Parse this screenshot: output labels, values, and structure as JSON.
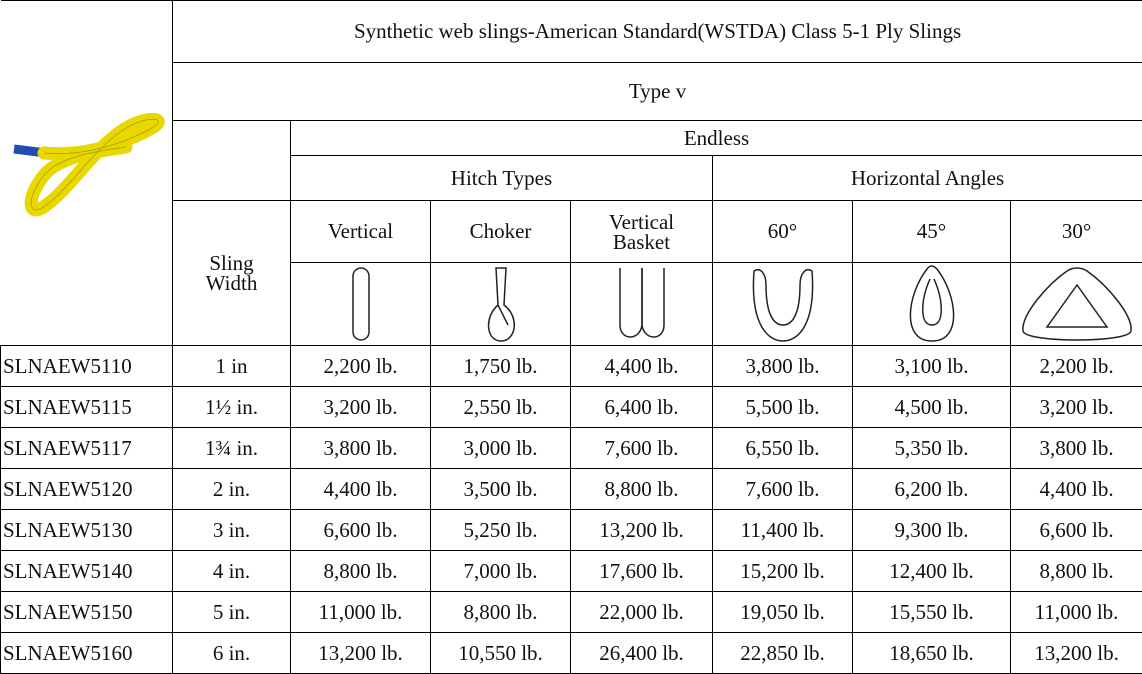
{
  "table": {
    "title": "Synthetic web slings-American Standard(WSTDA) Class 5-1 Ply Slings",
    "type": "Type v",
    "endless": "Endless",
    "hitch_types": "Hitch Types",
    "horizontal_angles": "Horizontal Angles",
    "sling_width": "Sling Width",
    "columns": [
      "Vertical",
      "Choker",
      "Vertical Basket",
      "60°",
      "45°",
      "30°"
    ],
    "rows": [
      [
        "SLNAEW5110",
        "1 in",
        "2,200 lb.",
        "1,750 lb.",
        "4,400 lb.",
        "3,800 lb.",
        "3,100 lb.",
        "2,200 lb."
      ],
      [
        "SLNAEW5115",
        "1½ in.",
        "3,200 lb.",
        "2,550 lb.",
        "6,400 lb.",
        "5,500 lb.",
        "4,500 lb.",
        "3,200 lb."
      ],
      [
        "SLNAEW5117",
        "1¾ in.",
        "3,800 lb.",
        "3,000 lb.",
        "7,600 lb.",
        "6,550 lb.",
        "5,350 lb.",
        "3,800 lb."
      ],
      [
        "SLNAEW5120",
        "2 in.",
        "4,400 lb.",
        "3,500 lb.",
        "8,800 lb.",
        "7,600 lb.",
        "6,200 lb.",
        "4,400 lb."
      ],
      [
        "SLNAEW5130",
        "3 in.",
        "6,600 lb.",
        "5,250 lb.",
        "13,200 lb.",
        "11,400 lb.",
        "9,300 lb.",
        "6,600 lb."
      ],
      [
        "SLNAEW5140",
        "4 in.",
        "8,800 lb.",
        "7,000 lb.",
        "17,600 lb.",
        "15,200 lb.",
        "12,400 lb.",
        "8,800 lb."
      ],
      [
        "SLNAEW5150",
        "5 in.",
        "11,000 lb.",
        "8,800 lb.",
        "22,000 lb.",
        "19,050 lb.",
        "15,550 lb.",
        "11,000 lb."
      ],
      [
        "SLNAEW5160",
        "6 in.",
        "13,200 lb.",
        "10,550 lb.",
        "26,400 lb.",
        "22,850 lb.",
        "18,650 lb.",
        "13,200 lb."
      ]
    ]
  }
}
